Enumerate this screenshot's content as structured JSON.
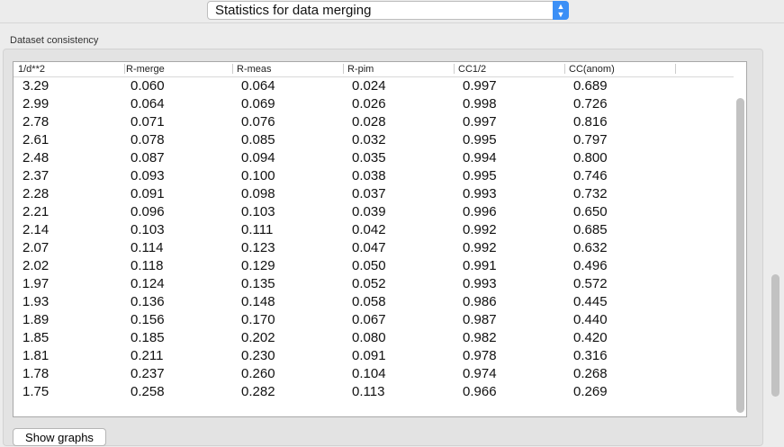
{
  "selector": {
    "value": "Statistics for data merging"
  },
  "group": {
    "title": "Dataset consistency"
  },
  "table": {
    "columns": [
      "1/d**2",
      "R-merge",
      "R-meas",
      "R-pim",
      "CC1/2",
      "CC(anom)"
    ],
    "rows": [
      [
        "3.29",
        "0.060",
        "0.064",
        "0.024",
        "0.997",
        "0.689"
      ],
      [
        "2.99",
        "0.064",
        "0.069",
        "0.026",
        "0.998",
        "0.726"
      ],
      [
        "2.78",
        "0.071",
        "0.076",
        "0.028",
        "0.997",
        "0.816"
      ],
      [
        "2.61",
        "0.078",
        "0.085",
        "0.032",
        "0.995",
        "0.797"
      ],
      [
        "2.48",
        "0.087",
        "0.094",
        "0.035",
        "0.994",
        "0.800"
      ],
      [
        "2.37",
        "0.093",
        "0.100",
        "0.038",
        "0.995",
        "0.746"
      ],
      [
        "2.28",
        "0.091",
        "0.098",
        "0.037",
        "0.993",
        "0.732"
      ],
      [
        "2.21",
        "0.096",
        "0.103",
        "0.039",
        "0.996",
        "0.650"
      ],
      [
        "2.14",
        "0.103",
        "0.111",
        "0.042",
        "0.992",
        "0.685"
      ],
      [
        "2.07",
        "0.114",
        "0.123",
        "0.047",
        "0.992",
        "0.632"
      ],
      [
        "2.02",
        "0.118",
        "0.129",
        "0.050",
        "0.991",
        "0.496"
      ],
      [
        "1.97",
        "0.124",
        "0.135",
        "0.052",
        "0.993",
        "0.572"
      ],
      [
        "1.93",
        "0.136",
        "0.148",
        "0.058",
        "0.986",
        "0.445"
      ],
      [
        "1.89",
        "0.156",
        "0.170",
        "0.067",
        "0.987",
        "0.440"
      ],
      [
        "1.85",
        "0.185",
        "0.202",
        "0.080",
        "0.982",
        "0.420"
      ],
      [
        "1.81",
        "0.211",
        "0.230",
        "0.091",
        "0.978",
        "0.316"
      ],
      [
        "1.78",
        "0.237",
        "0.260",
        "0.104",
        "0.974",
        "0.268"
      ],
      [
        "1.75",
        "0.258",
        "0.282",
        "0.113",
        "0.966",
        "0.269"
      ]
    ]
  },
  "buttons": {
    "show_graphs": "Show graphs"
  }
}
